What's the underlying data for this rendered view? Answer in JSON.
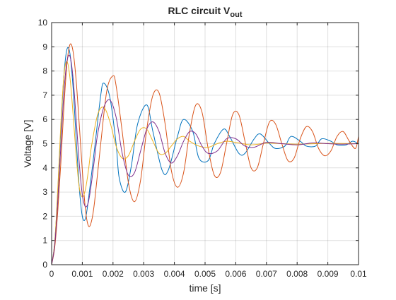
{
  "chart_data": {
    "type": "line",
    "title": "RLC circuit V",
    "title_subscript": "out",
    "xlabel": "time [s]",
    "ylabel": "Voltage [V]",
    "xlim": [
      0,
      0.01
    ],
    "ylim": [
      0,
      10
    ],
    "grid": true,
    "box": true,
    "xticks": [
      0,
      0.001,
      0.002,
      0.003,
      0.004,
      0.005,
      0.006,
      0.007,
      0.008,
      0.009,
      0.01
    ],
    "xtick_labels": [
      "0",
      "0.001",
      "0.002",
      "0.003",
      "0.004",
      "0.005",
      "0.006",
      "0.007",
      "0.008",
      "0.009",
      "0.01"
    ],
    "yticks": [
      0,
      1,
      2,
      3,
      4,
      5,
      6,
      7,
      8,
      9,
      10
    ],
    "ytick_labels": [
      "0",
      "1",
      "2",
      "3",
      "4",
      "5",
      "6",
      "7",
      "8",
      "9",
      "10"
    ],
    "series": [
      {
        "color": "#0072BD",
        "x": [
          0,
          0.0001,
          0.0002,
          0.0003,
          0.0004,
          0.0005,
          0.0006,
          0.0007,
          0.0008,
          0.0009,
          0.001,
          0.0011,
          0.0012,
          0.0014,
          0.0016,
          0.0017,
          0.0019,
          0.0021,
          0.0022,
          0.0024,
          0.0026,
          0.0028,
          0.0031,
          0.0033,
          0.0036,
          0.0038,
          0.0041,
          0.0043,
          0.0046,
          0.0048,
          0.0051,
          0.0053,
          0.0056,
          0.0058,
          0.0061,
          0.0063,
          0.0066,
          0.0068,
          0.0071,
          0.0073,
          0.0076,
          0.0078,
          0.0081,
          0.0083,
          0.0086,
          0.0088,
          0.0091,
          0.0093,
          0.0096,
          0.0098,
          0.01
        ],
        "y": [
          0,
          0.9,
          3.0,
          5.6,
          7.8,
          8.9,
          8.7,
          7.3,
          5.2,
          3.2,
          2.0,
          1.9,
          2.7,
          4.8,
          7.0,
          7.5,
          6.9,
          5.0,
          3.6,
          3.0,
          4.1,
          5.8,
          6.6,
          5.5,
          3.9,
          3.9,
          5.3,
          6.0,
          5.5,
          4.4,
          4.3,
          5.0,
          5.6,
          5.3,
          4.6,
          4.6,
          5.2,
          5.4,
          5.0,
          4.8,
          4.9,
          5.3,
          5.1,
          4.9,
          4.9,
          5.2,
          5.1,
          4.95,
          4.95,
          5.1,
          5.0
        ]
      },
      {
        "color": "#D95319",
        "x": [
          0,
          0.0001,
          0.0002,
          0.0003,
          0.0004,
          0.0005,
          0.0006,
          0.0007,
          0.0008,
          0.0009,
          0.001,
          0.0011,
          0.0012,
          0.0013,
          0.0014,
          0.0016,
          0.0018,
          0.002,
          0.0021,
          0.0023,
          0.0025,
          0.0027,
          0.0029,
          0.0031,
          0.0033,
          0.0035,
          0.0037,
          0.0039,
          0.0041,
          0.0043,
          0.0045,
          0.0047,
          0.0049,
          0.0051,
          0.0053,
          0.0055,
          0.0057,
          0.0059,
          0.0061,
          0.0063,
          0.0065,
          0.0067,
          0.0069,
          0.0071,
          0.0073,
          0.0075,
          0.0077,
          0.0079,
          0.0081,
          0.0083,
          0.0085,
          0.0087,
          0.0089,
          0.0091,
          0.0093,
          0.0095,
          0.0097,
          0.0099,
          0.01
        ],
        "y": [
          0,
          0.7,
          2.2,
          4.2,
          6.5,
          8.3,
          9.1,
          8.8,
          7.6,
          5.8,
          3.9,
          2.3,
          1.6,
          1.8,
          2.6,
          5.0,
          7.2,
          7.8,
          7.4,
          5.5,
          3.4,
          2.6,
          3.5,
          5.6,
          7.0,
          7.1,
          5.8,
          3.9,
          3.2,
          3.8,
          5.5,
          6.6,
          6.3,
          4.8,
          3.7,
          3.8,
          5.0,
          6.2,
          6.2,
          5.1,
          4.0,
          4.0,
          5.0,
          5.9,
          5.8,
          5.0,
          4.3,
          4.4,
          5.2,
          5.7,
          5.5,
          4.8,
          4.5,
          4.7,
          5.3,
          5.5,
          5.1,
          4.8,
          5.3
        ]
      },
      {
        "color": "#EDB120",
        "x": [
          0,
          0.0001,
          0.0002,
          0.0003,
          0.0004,
          0.0005,
          0.0006,
          0.0007,
          0.0008,
          0.0009,
          0.001,
          0.0011,
          0.0012,
          0.0013,
          0.0015,
          0.0017,
          0.0019,
          0.0021,
          0.0023,
          0.0025,
          0.0027,
          0.0029,
          0.0031,
          0.0033,
          0.0035,
          0.0037,
          0.0039,
          0.0041,
          0.0043,
          0.0045,
          0.0048,
          0.0051,
          0.0054,
          0.0057,
          0.006,
          0.0065,
          0.007,
          0.0075,
          0.008,
          0.009,
          0.01
        ],
        "y": [
          0,
          0.9,
          3.1,
          5.8,
          7.8,
          8.4,
          7.7,
          6.2,
          4.5,
          3.2,
          2.8,
          3.1,
          3.9,
          4.9,
          6.2,
          6.5,
          5.9,
          4.9,
          4.4,
          4.5,
          5.1,
          5.6,
          5.6,
          5.1,
          4.6,
          4.6,
          4.9,
          5.2,
          5.3,
          5.1,
          4.9,
          4.85,
          5.0,
          5.1,
          5.05,
          4.95,
          5.02,
          5.0,
          4.98,
          5.01,
          5.0
        ]
      },
      {
        "color": "#7E2F8E",
        "x": [
          0,
          0.0001,
          0.0002,
          0.0003,
          0.0004,
          0.0005,
          0.0006,
          0.0007,
          0.0008,
          0.0009,
          0.001,
          0.0011,
          0.0012,
          0.0013,
          0.0014,
          0.0015,
          0.0017,
          0.0019,
          0.0021,
          0.0023,
          0.0025,
          0.0027,
          0.0029,
          0.0031,
          0.0033,
          0.0035,
          0.0037,
          0.0039,
          0.0041,
          0.0043,
          0.0045,
          0.0047,
          0.0049,
          0.0051,
          0.0054,
          0.0057,
          0.006,
          0.0063,
          0.0066,
          0.007,
          0.0075,
          0.008,
          0.0085,
          0.009,
          0.0095,
          0.01
        ],
        "y": [
          0,
          0.8,
          2.6,
          4.9,
          7.1,
          8.4,
          8.6,
          7.7,
          6.0,
          4.2,
          2.9,
          2.4,
          2.6,
          3.4,
          4.4,
          5.4,
          6.5,
          6.8,
          6.1,
          4.6,
          3.7,
          3.8,
          4.7,
          5.6,
          5.9,
          5.5,
          4.6,
          4.2,
          4.5,
          5.1,
          5.5,
          5.4,
          4.9,
          4.6,
          4.7,
          5.2,
          5.2,
          4.9,
          4.85,
          5.05,
          5.0,
          4.95,
          5.03,
          5.0,
          4.98,
          5.0
        ]
      }
    ]
  }
}
